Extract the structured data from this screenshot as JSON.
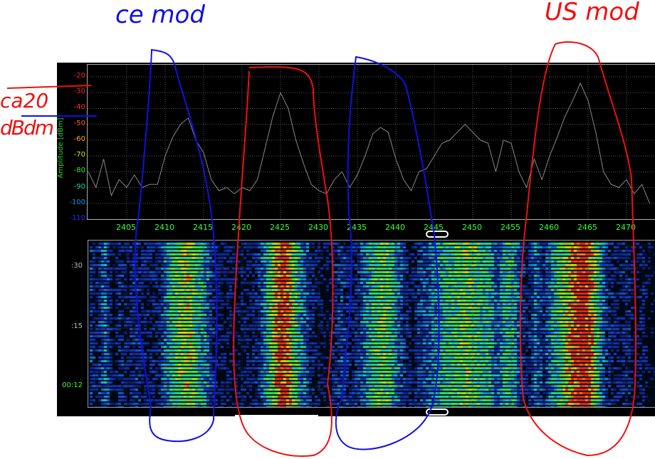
{
  "spectrum": {
    "y_axis_title": "Amplitude [dBm]",
    "y_ticks": [
      {
        "label": "-20",
        "value": -20,
        "color": "#ff2020"
      },
      {
        "label": "-30",
        "value": -30,
        "color": "#ff2020"
      },
      {
        "label": "-40",
        "value": -40,
        "color": "#ff3030"
      },
      {
        "label": "-50",
        "value": -50,
        "color": "#ff6a00"
      },
      {
        "label": "-60",
        "value": -60,
        "color": "#ffb000"
      },
      {
        "label": "-70",
        "value": -70,
        "color": "#e0e000"
      },
      {
        "label": "-80",
        "value": -80,
        "color": "#40e040"
      },
      {
        "label": "-90",
        "value": -90,
        "color": "#20d0a0"
      },
      {
        "label": "-100",
        "value": -100,
        "color": "#2090e0"
      },
      {
        "label": "-110",
        "value": -110,
        "color": "#1030ff"
      }
    ],
    "x_ticks": [
      "2405",
      "2410",
      "2415",
      "2420",
      "2425",
      "2430",
      "2435",
      "2440",
      "2445",
      "2450",
      "2455",
      "2460",
      "2465",
      "2470"
    ],
    "x_start_mhz": 2400,
    "trace_dbm": [
      -80,
      -90,
      -72,
      -95,
      -85,
      -90,
      -82,
      -90,
      -88,
      -88,
      -70,
      -58,
      -50,
      -46,
      -60,
      -68,
      -85,
      -92,
      -90,
      -94,
      -90,
      -92,
      -85,
      -65,
      -45,
      -30,
      -40,
      -60,
      -75,
      -88,
      -92,
      -94,
      -85,
      -80,
      -90,
      -82,
      -70,
      -56,
      -52,
      -55,
      -72,
      -85,
      -92,
      -80,
      -78,
      -70,
      -62,
      -60,
      -55,
      -50,
      -55,
      -60,
      -62,
      -80,
      -60,
      -62,
      -80,
      -90,
      -72,
      -85,
      -70,
      -58,
      -45,
      -35,
      -24,
      -35,
      -55,
      -80,
      -88,
      -90,
      -85,
      -94,
      -88,
      -100
    ]
  },
  "waterfall": {
    "time_labels": [
      {
        "label": ":30",
        "color": "#bbbbbb"
      },
      {
        "label": ":15",
        "color": "#bbbbbb"
      },
      {
        "label": "00:12",
        "color": "#33ff33"
      }
    ]
  },
  "annotations": {
    "ce_mod": "ce mod",
    "us_mod": "US mod",
    "level_note_1": "ca20",
    "level_note_2": "dBdm",
    "blue": "#1010e0",
    "red": "#ee1010"
  }
}
